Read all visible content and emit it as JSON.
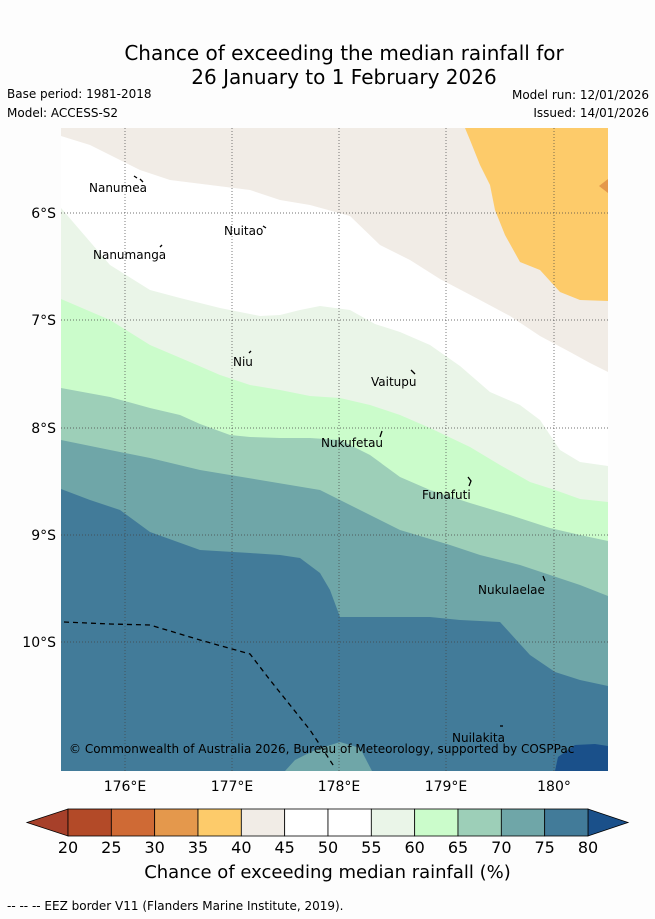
{
  "title": {
    "line1": "Chance of exceeding the median rainfall for",
    "line2": "26 January to 1 February 2026"
  },
  "meta": {
    "base_period": "Base period: 1981-2018",
    "model": "Model: ACCESS-S2",
    "model_run": "Model run: 12/01/2026",
    "issued": "Issued: 14/01/2026"
  },
  "map": {
    "lon_ticks": [
      "176°E",
      "177°E",
      "178°E",
      "179°E",
      "180°"
    ],
    "lat_ticks": [
      "6°S",
      "7°S",
      "8°S",
      "9°S",
      "10°S"
    ],
    "places": [
      {
        "name": "Nanumea"
      },
      {
        "name": "Nuitao"
      },
      {
        "name": "Nanumanga"
      },
      {
        "name": "Niu"
      },
      {
        "name": "Vaitupu"
      },
      {
        "name": "Nukufetau"
      },
      {
        "name": "Funafuti"
      },
      {
        "name": "Nukulaelae"
      },
      {
        "name": "Nuilakita"
      }
    ],
    "copyright": "© Commonwealth of Australia 2026, Bureau of Meteorology, supported by COSPPac"
  },
  "colorbar": {
    "ticks": [
      "20",
      "25",
      "30",
      "35",
      "40",
      "45",
      "50",
      "55",
      "60",
      "65",
      "70",
      "75",
      "80"
    ],
    "colors": [
      "#b34a28",
      "#cf6a35",
      "#e4984c",
      "#fdcb6a",
      "#f1ece6",
      "#ffffff",
      "#ffffff",
      "#eaf5e8",
      "#cbfccb",
      "#9dcfb8",
      "#6fa6a8",
      "#427b99"
    ],
    "under_color": "#a7402a",
    "over_color": "#1a508a",
    "label": "Chance of exceeding median rainfall (%)"
  },
  "footer": "--  --  -- EEZ border V11 (Flanders Marine Institute, 2019)."
}
